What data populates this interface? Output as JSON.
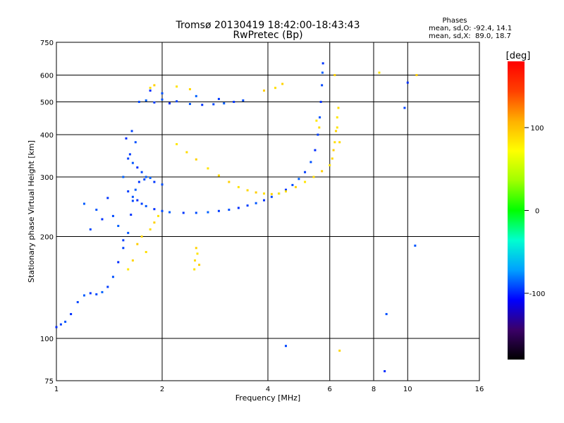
{
  "chart_data": {
    "type": "scatter",
    "title": "Tromsø 20130419 18:42:00-18:43:43",
    "subtitle": "RwPretec (Bp)",
    "xlabel": "Frequency [MHz]",
    "ylabel": "Stationary phase Virtual Height [km]",
    "xscale": "log",
    "yscale": "log",
    "xlim": [
      1,
      16
    ],
    "ylim": [
      75,
      750
    ],
    "x_ticks": [
      1,
      2,
      4,
      6,
      8,
      10,
      16
    ],
    "y_ticks": [
      75,
      100,
      200,
      300,
      400,
      500,
      600,
      750
    ],
    "grid": true,
    "phase_title": "Phases",
    "phase_stats": [
      {
        "label": "mean, sd,O:",
        "mean": -92.4,
        "sd": 14.1,
        "text": "mean, sd,O: -92.4, 14.1"
      },
      {
        "label": "mean, sd,X:",
        "mean": 89.0,
        "sd": 18.7,
        "text": "mean, sd,X:  89.0, 18.7"
      }
    ],
    "colorbar": {
      "label": "[deg]",
      "range": [
        -180,
        180
      ],
      "ticks": [
        100,
        0,
        -100
      ],
      "tick_labels": [
        "100",
        "0",
        "-100"
      ],
      "colors": [
        "#000000",
        "#3b0068",
        "#0000ff",
        "#00a0ff",
        "#00ffd0",
        "#00ff00",
        "#a0ff00",
        "#ffff00",
        "#ffb000",
        "#ff4000",
        "#ff0000"
      ]
    },
    "series": [
      {
        "name": "O",
        "mean_phase": -92.4,
        "points": [
          [
            1.0,
            108
          ],
          [
            1.03,
            110
          ],
          [
            1.06,
            112
          ],
          [
            1.1,
            118
          ],
          [
            1.15,
            128
          ],
          [
            1.2,
            134
          ],
          [
            1.25,
            136
          ],
          [
            1.3,
            135
          ],
          [
            1.35,
            137
          ],
          [
            1.4,
            142
          ],
          [
            1.45,
            152
          ],
          [
            1.5,
            168
          ],
          [
            1.55,
            185
          ],
          [
            1.6,
            205
          ],
          [
            1.63,
            232
          ],
          [
            1.65,
            255
          ],
          [
            1.68,
            275
          ],
          [
            1.72,
            290
          ],
          [
            1.78,
            295
          ],
          [
            1.85,
            298
          ],
          [
            1.6,
            272
          ],
          [
            1.65,
            262
          ],
          [
            1.7,
            256
          ],
          [
            1.75,
            250
          ],
          [
            1.8,
            246
          ],
          [
            1.9,
            241
          ],
          [
            2.0,
            238
          ],
          [
            2.1,
            236
          ],
          [
            2.3,
            235
          ],
          [
            2.5,
            235
          ],
          [
            2.7,
            236
          ],
          [
            2.9,
            238
          ],
          [
            3.1,
            240
          ],
          [
            3.3,
            243
          ],
          [
            3.5,
            247
          ],
          [
            3.7,
            251
          ],
          [
            3.9,
            256
          ],
          [
            4.1,
            262
          ],
          [
            4.3,
            268
          ],
          [
            4.5,
            275
          ],
          [
            4.7,
            284
          ],
          [
            4.9,
            296
          ],
          [
            5.1,
            310
          ],
          [
            5.3,
            332
          ],
          [
            5.45,
            360
          ],
          [
            5.55,
            400
          ],
          [
            5.62,
            450
          ],
          [
            5.66,
            500
          ],
          [
            5.7,
            560
          ],
          [
            5.72,
            610
          ],
          [
            5.74,
            650
          ],
          [
            1.72,
            500
          ],
          [
            1.8,
            505
          ],
          [
            1.9,
            498
          ],
          [
            2.0,
            508
          ],
          [
            2.1,
            495
          ],
          [
            2.2,
            502
          ],
          [
            2.4,
            493
          ],
          [
            2.6,
            490
          ],
          [
            2.8,
            492
          ],
          [
            3.0,
            495
          ],
          [
            3.2,
            500
          ],
          [
            3.4,
            505
          ],
          [
            2.5,
            520
          ],
          [
            2.9,
            510
          ],
          [
            2.0,
            530
          ],
          [
            1.85,
            540
          ],
          [
            1.6,
            340
          ],
          [
            1.65,
            330
          ],
          [
            1.7,
            320
          ],
          [
            1.75,
            310
          ],
          [
            1.8,
            300
          ],
          [
            1.9,
            290
          ],
          [
            2.0,
            285
          ],
          [
            1.55,
            300
          ],
          [
            1.62,
            350
          ],
          [
            1.68,
            380
          ],
          [
            1.58,
            390
          ],
          [
            1.64,
            410
          ],
          [
            1.3,
            240
          ],
          [
            1.35,
            225
          ],
          [
            1.25,
            210
          ],
          [
            1.2,
            250
          ],
          [
            1.4,
            260
          ],
          [
            1.45,
            230
          ],
          [
            1.5,
            215
          ],
          [
            1.55,
            195
          ],
          [
            8.7,
            118
          ],
          [
            8.6,
            80
          ],
          [
            9.8,
            480
          ],
          [
            10.5,
            188
          ],
          [
            10.0,
            570
          ],
          [
            4.5,
            95
          ]
        ]
      },
      {
        "name": "X",
        "mean_phase": 89.0,
        "points": [
          [
            2.2,
            375
          ],
          [
            2.35,
            355
          ],
          [
            2.5,
            338
          ],
          [
            2.7,
            318
          ],
          [
            2.9,
            303
          ],
          [
            3.1,
            290
          ],
          [
            3.3,
            280
          ],
          [
            3.5,
            274
          ],
          [
            3.7,
            270
          ],
          [
            3.9,
            268
          ],
          [
            4.1,
            267
          ],
          [
            4.3,
            268
          ],
          [
            4.5,
            272
          ],
          [
            4.8,
            280
          ],
          [
            5.1,
            290
          ],
          [
            5.4,
            300
          ],
          [
            5.7,
            312
          ],
          [
            6.0,
            325
          ],
          [
            6.1,
            340
          ],
          [
            6.15,
            360
          ],
          [
            6.2,
            380
          ],
          [
            6.25,
            410
          ],
          [
            6.3,
            450
          ],
          [
            6.35,
            480
          ],
          [
            2.5,
            185
          ],
          [
            2.52,
            178
          ],
          [
            2.48,
            170
          ],
          [
            2.55,
            165
          ],
          [
            2.47,
            160
          ],
          [
            1.75,
            200
          ],
          [
            1.7,
            190
          ],
          [
            1.8,
            180
          ],
          [
            1.65,
            170
          ],
          [
            1.6,
            160
          ],
          [
            1.85,
            210
          ],
          [
            1.9,
            220
          ],
          [
            1.95,
            230
          ],
          [
            1.85,
            550
          ],
          [
            1.9,
            560
          ],
          [
            2.2,
            555
          ],
          [
            2.4,
            545
          ],
          [
            3.9,
            540
          ],
          [
            4.2,
            550
          ],
          [
            4.4,
            565
          ],
          [
            5.5,
            440
          ],
          [
            5.6,
            420
          ],
          [
            6.2,
            600
          ],
          [
            6.3,
            420
          ],
          [
            6.4,
            380
          ],
          [
            10.6,
            600
          ],
          [
            8.3,
            610
          ],
          [
            6.4,
            92
          ]
        ]
      }
    ]
  }
}
